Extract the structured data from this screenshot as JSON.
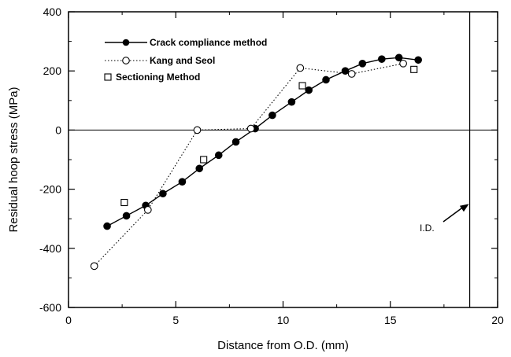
{
  "chart_data": {
    "type": "line",
    "title": "",
    "xlabel": "Distance from O.D. (mm)",
    "ylabel": "Residual hoop stress (MPa)",
    "xlim": [
      0,
      20
    ],
    "ylim": [
      -600,
      400
    ],
    "xticks": [
      0,
      5,
      10,
      15,
      20
    ],
    "yticks": [
      -600,
      -400,
      -200,
      0,
      200,
      400
    ],
    "grid": false,
    "legend_position": "top-left",
    "series": [
      {
        "name": "Crack compliance method",
        "style": "solid line, filled circle markers",
        "color": "#000000",
        "x": [
          1.8,
          2.7,
          3.6,
          4.4,
          5.3,
          6.1,
          7.0,
          7.8,
          8.7,
          9.5,
          10.4,
          11.2,
          12.0,
          12.9,
          13.7,
          14.6,
          15.4,
          16.3
        ],
        "y": [
          -325,
          -290,
          -255,
          -215,
          -175,
          -130,
          -85,
          -40,
          5,
          50,
          95,
          135,
          170,
          200,
          225,
          240,
          245,
          237
        ]
      },
      {
        "name": "Kang and Seol",
        "style": "dotted line, open circle markers",
        "color": "#000000",
        "x": [
          1.2,
          3.7,
          6.0,
          8.5,
          10.8,
          13.2,
          15.6
        ],
        "y": [
          -460,
          -270,
          0,
          5,
          210,
          190,
          225
        ]
      },
      {
        "name": "Sectioning Method",
        "style": "open square markers, no line",
        "color": "#000000",
        "x": [
          2.6,
          6.3,
          10.9,
          16.1
        ],
        "y": [
          -245,
          -100,
          150,
          205
        ]
      }
    ],
    "reference_lines": {
      "horizontal_y": 0,
      "vertical_x": 18.7
    },
    "annotation": {
      "text": "I.D.",
      "points_to_x": 18.7,
      "points_to_y": -250
    }
  }
}
